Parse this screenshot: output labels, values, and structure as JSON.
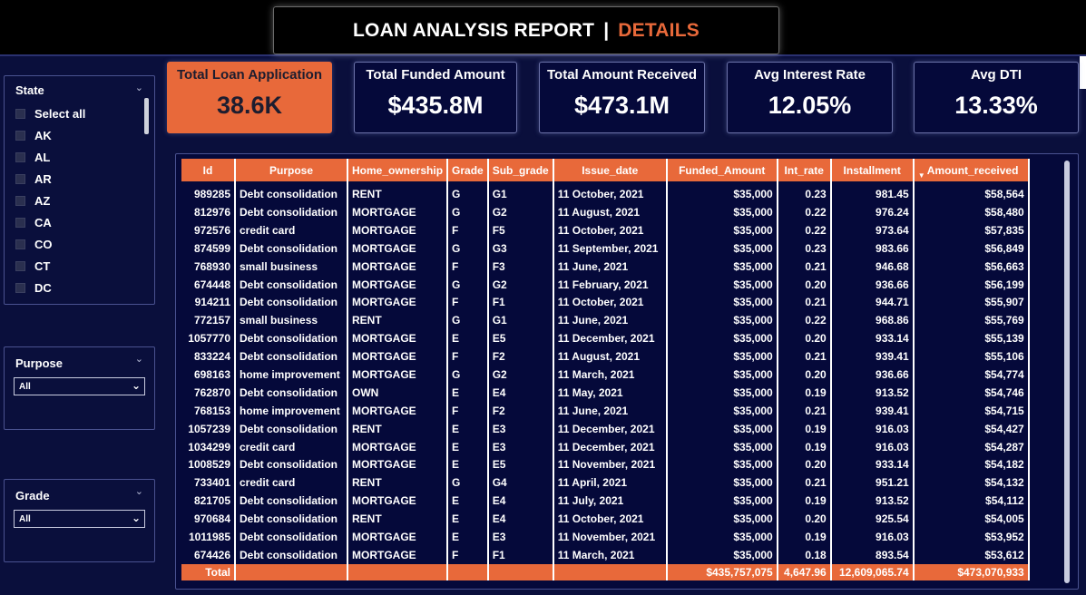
{
  "header": {
    "title": "LOAN ANALYSIS REPORT",
    "separator": "|",
    "subtitle": "DETAILS"
  },
  "filters": {
    "state": {
      "title": "State",
      "items": [
        "Select all",
        "AK",
        "AL",
        "AR",
        "AZ",
        "CA",
        "CO",
        "CT",
        "DC"
      ]
    },
    "purpose": {
      "title": "Purpose",
      "selected": "All"
    },
    "grade": {
      "title": "Grade",
      "selected": "All"
    }
  },
  "kpis": [
    {
      "label": "Total Loan Application",
      "value": "38.6K"
    },
    {
      "label": "Total Funded Amount",
      "value": "$435.8M"
    },
    {
      "label": "Total Amount Received",
      "value": "$473.1M"
    },
    {
      "label": "Avg Interest Rate",
      "value": "12.05%"
    },
    {
      "label": "Avg DTI",
      "value": "13.33%"
    }
  ],
  "table": {
    "columns": [
      "Id",
      "Purpose",
      "Home_ownership",
      "Grade",
      "Sub_grade",
      "Issue_date",
      "Funded_Amount",
      "Int_rate",
      "Installment",
      "Amount_received"
    ],
    "sorted_column": "Amount_received",
    "rows": [
      [
        "989285",
        "Debt consolidation",
        "RENT",
        "G",
        "G1",
        "11 October, 2021",
        "$35,000",
        "0.23",
        "981.45",
        "$58,564"
      ],
      [
        "812976",
        "Debt consolidation",
        "MORTGAGE",
        "G",
        "G2",
        "11 August, 2021",
        "$35,000",
        "0.22",
        "976.24",
        "$58,480"
      ],
      [
        "972576",
        "credit card",
        "MORTGAGE",
        "F",
        "F5",
        "11 October, 2021",
        "$35,000",
        "0.22",
        "973.64",
        "$57,835"
      ],
      [
        "874599",
        "Debt consolidation",
        "MORTGAGE",
        "G",
        "G3",
        "11 September, 2021",
        "$35,000",
        "0.23",
        "983.66",
        "$56,849"
      ],
      [
        "768930",
        "small business",
        "MORTGAGE",
        "F",
        "F3",
        "11 June, 2021",
        "$35,000",
        "0.21",
        "946.68",
        "$56,663"
      ],
      [
        "674448",
        "Debt consolidation",
        "MORTGAGE",
        "G",
        "G2",
        "11 February, 2021",
        "$35,000",
        "0.20",
        "936.66",
        "$56,199"
      ],
      [
        "914211",
        "Debt consolidation",
        "MORTGAGE",
        "F",
        "F1",
        "11 October, 2021",
        "$35,000",
        "0.21",
        "944.71",
        "$55,907"
      ],
      [
        "772157",
        "small business",
        "RENT",
        "G",
        "G1",
        "11 June, 2021",
        "$35,000",
        "0.22",
        "968.86",
        "$55,769"
      ],
      [
        "1057770",
        "Debt consolidation",
        "MORTGAGE",
        "E",
        "E5",
        "11 December, 2021",
        "$35,000",
        "0.20",
        "933.14",
        "$55,139"
      ],
      [
        "833224",
        "Debt consolidation",
        "MORTGAGE",
        "F",
        "F2",
        "11 August, 2021",
        "$35,000",
        "0.21",
        "939.41",
        "$55,106"
      ],
      [
        "698163",
        "home improvement",
        "MORTGAGE",
        "G",
        "G2",
        "11 March, 2021",
        "$35,000",
        "0.20",
        "936.66",
        "$54,774"
      ],
      [
        "762870",
        "Debt consolidation",
        "OWN",
        "E",
        "E4",
        "11 May, 2021",
        "$35,000",
        "0.19",
        "913.52",
        "$54,746"
      ],
      [
        "768153",
        "home improvement",
        "MORTGAGE",
        "F",
        "F2",
        "11 June, 2021",
        "$35,000",
        "0.21",
        "939.41",
        "$54,715"
      ],
      [
        "1057239",
        "Debt consolidation",
        "RENT",
        "E",
        "E3",
        "11 December, 2021",
        "$35,000",
        "0.19",
        "916.03",
        "$54,427"
      ],
      [
        "1034299",
        "credit card",
        "MORTGAGE",
        "E",
        "E3",
        "11 December, 2021",
        "$35,000",
        "0.19",
        "916.03",
        "$54,287"
      ],
      [
        "1008529",
        "Debt consolidation",
        "MORTGAGE",
        "E",
        "E5",
        "11 November, 2021",
        "$35,000",
        "0.20",
        "933.14",
        "$54,182"
      ],
      [
        "733401",
        "credit card",
        "RENT",
        "G",
        "G4",
        "11 April, 2021",
        "$35,000",
        "0.21",
        "951.21",
        "$54,132"
      ],
      [
        "821705",
        "Debt consolidation",
        "MORTGAGE",
        "E",
        "E4",
        "11 July, 2021",
        "$35,000",
        "0.19",
        "913.52",
        "$54,112"
      ],
      [
        "970684",
        "Debt consolidation",
        "RENT",
        "E",
        "E4",
        "11 October, 2021",
        "$35,000",
        "0.20",
        "925.54",
        "$54,005"
      ],
      [
        "1011985",
        "Debt consolidation",
        "MORTGAGE",
        "E",
        "E3",
        "11 November, 2021",
        "$35,000",
        "0.19",
        "916.03",
        "$53,952"
      ],
      [
        "674426",
        "Debt consolidation",
        "MORTGAGE",
        "F",
        "F1",
        "11 March, 2021",
        "$35,000",
        "0.18",
        "893.54",
        "$53,612"
      ]
    ],
    "total": [
      "Total",
      "",
      "",
      "",
      "",
      "",
      "$435,757,075",
      "4,647.96",
      "12,609,065.74",
      "$473,070,933"
    ]
  },
  "colors": {
    "background": "#0a0f3c",
    "accent": "#e8693a",
    "card": "#05093a"
  },
  "icons": {
    "slicer_menu": "chevron-down-icon",
    "dropdown": "chevron-down-icon",
    "sort": "sort-descending-icon"
  }
}
